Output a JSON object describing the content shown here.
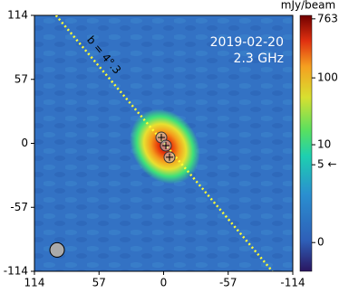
{
  "chart_data": {
    "type": "image",
    "annotations": [
      "2019-02-20",
      "2.3 GHz"
    ],
    "xlim": [
      114,
      -114
    ],
    "xticks": [
      114,
      57,
      0,
      -57,
      -114
    ],
    "ylim": [
      -114,
      114
    ],
    "yticks": [
      114,
      57,
      0,
      -57,
      -114
    ],
    "components": {
      "x": [
        2,
        -2,
        -5.2
      ],
      "y": [
        5.2,
        -2,
        -12.4
      ]
    },
    "beam": {
      "x": 94,
      "y": -95,
      "radius": 6.4
    },
    "line": {
      "label": "b = 4°.3",
      "color": "#ffff33",
      "x": [
        95,
        -96
      ],
      "y": [
        114,
        -114
      ]
    },
    "colorbar": {
      "label": "mJy/beam",
      "scale": "asinh",
      "linear_width": 0.69,
      "lim": [
        -0.8,
        860
      ],
      "ticks": [
        763,
        100,
        10,
        {
          "value": 5,
          "label": "5 ←"
        },
        0
      ]
    }
  }
}
